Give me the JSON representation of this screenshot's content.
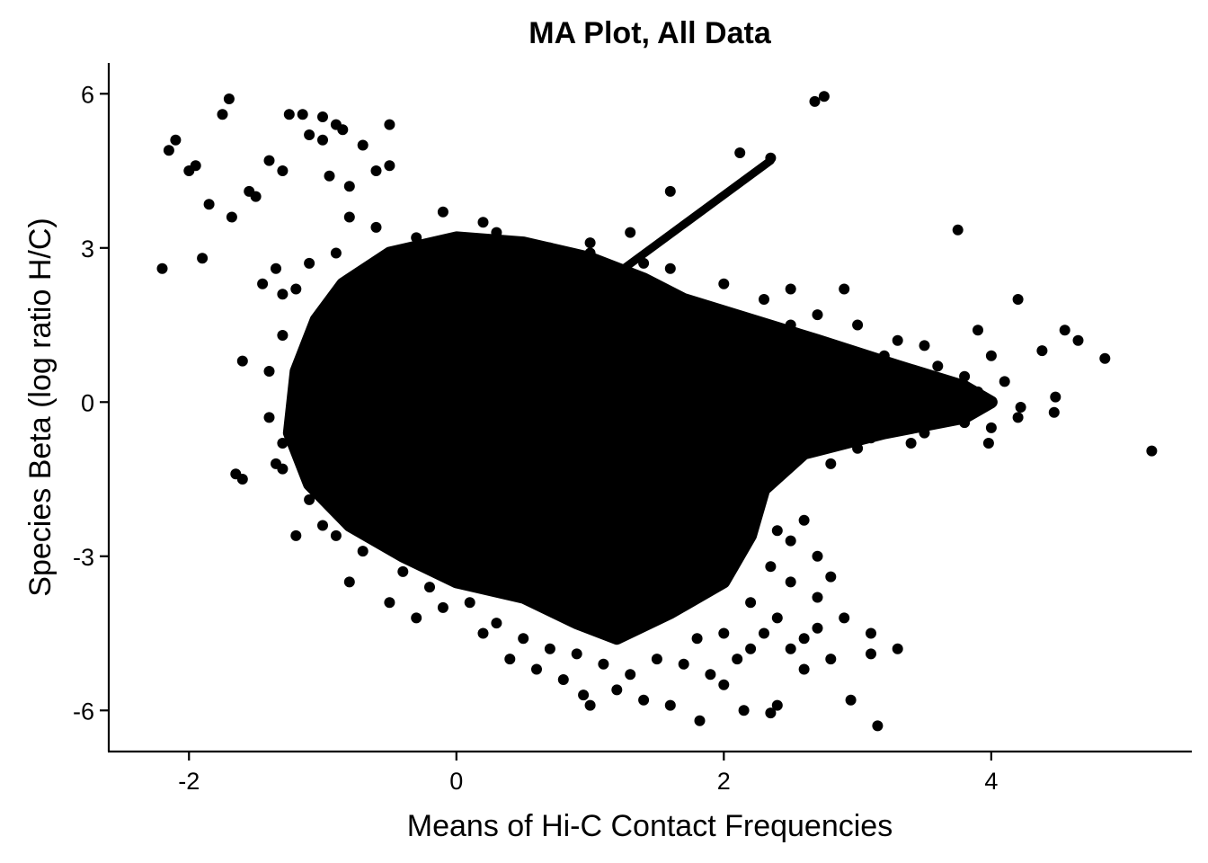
{
  "chart_data": {
    "type": "scatter",
    "title": "MA Plot, All Data",
    "xlabel": "Means of Hi-C Contact Frequencies",
    "ylabel": "Species Beta (log ratio H/C)",
    "xlim": [
      -2.6,
      5.5
    ],
    "ylim": [
      -6.8,
      6.6
    ],
    "x_ticks": [
      -2,
      0,
      2,
      4
    ],
    "x_tick_labels": [
      "-2",
      "0",
      "2",
      "4"
    ],
    "y_ticks": [
      -6,
      -3,
      0,
      3,
      6
    ],
    "y_tick_labels": [
      "-6",
      "-3",
      "0",
      "3",
      "6"
    ],
    "grid": false,
    "legend": "none",
    "point_color": "#000000",
    "dense_region_outline": [
      [
        -1.2,
        0.6
      ],
      [
        -1.05,
        1.6
      ],
      [
        -0.85,
        2.3
      ],
      [
        -0.5,
        2.9
      ],
      [
        0.0,
        3.2
      ],
      [
        0.5,
        3.1
      ],
      [
        1.0,
        2.8
      ],
      [
        1.4,
        2.4
      ],
      [
        1.7,
        2.0
      ],
      [
        2.2,
        1.6
      ],
      [
        2.7,
        1.2
      ],
      [
        3.3,
        0.7
      ],
      [
        3.8,
        0.3
      ],
      [
        4.0,
        0.0
      ],
      [
        3.8,
        -0.3
      ],
      [
        3.2,
        -0.6
      ],
      [
        2.6,
        -1.0
      ],
      [
        2.3,
        -1.7
      ],
      [
        2.2,
        -2.6
      ],
      [
        2.0,
        -3.5
      ],
      [
        1.6,
        -4.1
      ],
      [
        1.2,
        -4.6
      ],
      [
        0.9,
        -4.3
      ],
      [
        0.5,
        -3.8
      ],
      [
        0.0,
        -3.5
      ],
      [
        -0.4,
        -3.0
      ],
      [
        -0.8,
        -2.4
      ],
      [
        -1.1,
        -1.6
      ],
      [
        -1.25,
        -0.6
      ]
    ],
    "line_feature": {
      "x": [
        1.2,
        2.35
      ],
      "y": [
        2.5,
        4.7
      ]
    },
    "points": [
      [
        -2.2,
        2.6
      ],
      [
        -2.15,
        4.9
      ],
      [
        -2.1,
        5.1
      ],
      [
        -2.0,
        4.5
      ],
      [
        -1.95,
        4.6
      ],
      [
        -1.9,
        2.8
      ],
      [
        -1.85,
        3.85
      ],
      [
        -1.75,
        5.6
      ],
      [
        -1.7,
        5.9
      ],
      [
        -1.68,
        3.6
      ],
      [
        -1.6,
        0.8
      ],
      [
        -1.65,
        -1.4
      ],
      [
        -1.6,
        -1.5
      ],
      [
        -1.55,
        4.1
      ],
      [
        -1.5,
        4.0
      ],
      [
        -1.45,
        2.3
      ],
      [
        -1.4,
        4.7
      ],
      [
        -1.35,
        2.6
      ],
      [
        -1.3,
        4.5
      ],
      [
        -1.3,
        2.1
      ],
      [
        -1.4,
        -0.3
      ],
      [
        -1.35,
        -1.2
      ],
      [
        -1.3,
        -1.3
      ],
      [
        -1.25,
        5.6
      ],
      [
        -1.15,
        5.6
      ],
      [
        -1.1,
        5.2
      ],
      [
        -1.0,
        5.55
      ],
      [
        -1.0,
        5.1
      ],
      [
        -0.95,
        4.4
      ],
      [
        -0.9,
        5.4
      ],
      [
        -0.85,
        5.3
      ],
      [
        -0.8,
        4.2
      ],
      [
        -0.7,
        5.0
      ],
      [
        -0.6,
        4.5
      ],
      [
        -0.5,
        5.4
      ],
      [
        -0.5,
        4.6
      ],
      [
        -1.2,
        -2.6
      ],
      [
        -1.0,
        -2.4
      ],
      [
        -0.8,
        -3.5
      ],
      [
        -0.5,
        -3.9
      ],
      [
        -0.3,
        -4.2
      ],
      [
        -0.1,
        -4.0
      ],
      [
        0.2,
        -4.5
      ],
      [
        0.4,
        -5.0
      ],
      [
        0.6,
        -5.2
      ],
      [
        0.8,
        -5.4
      ],
      [
        0.95,
        -5.7
      ],
      [
        1.0,
        -5.9
      ],
      [
        1.2,
        -5.6
      ],
      [
        1.4,
        -5.8
      ],
      [
        1.6,
        -5.9
      ],
      [
        1.82,
        -6.2
      ],
      [
        2.0,
        -5.5
      ],
      [
        2.15,
        -6.0
      ],
      [
        2.35,
        -6.05
      ],
      [
        2.4,
        -5.9
      ],
      [
        2.6,
        -5.2
      ],
      [
        2.8,
        -5.0
      ],
      [
        2.95,
        -5.8
      ],
      [
        3.15,
        -6.3
      ],
      [
        3.1,
        -4.9
      ],
      [
        3.3,
        -4.8
      ],
      [
        3.1,
        -4.5
      ],
      [
        2.9,
        -4.2
      ],
      [
        2.7,
        -3.8
      ],
      [
        2.8,
        -3.4
      ],
      [
        2.7,
        -3.0
      ],
      [
        2.5,
        -2.7
      ],
      [
        2.6,
        -2.3
      ],
      [
        2.5,
        -3.5
      ],
      [
        2.4,
        -4.2
      ],
      [
        2.3,
        -4.5
      ],
      [
        2.2,
        -3.9
      ],
      [
        2.35,
        -3.2
      ],
      [
        2.4,
        -2.5
      ],
      [
        2.68,
        5.85
      ],
      [
        2.75,
        5.95
      ],
      [
        2.12,
        4.85
      ],
      [
        2.35,
        4.75
      ],
      [
        1.6,
        4.1
      ],
      [
        1.3,
        3.3
      ],
      [
        1.0,
        3.1
      ],
      [
        0.7,
        3.0
      ],
      [
        0.45,
        3.1
      ],
      [
        0.2,
        3.5
      ],
      [
        -0.1,
        3.7
      ],
      [
        1.6,
        2.6
      ],
      [
        2.0,
        2.3
      ],
      [
        2.3,
        2.0
      ],
      [
        2.5,
        2.2
      ],
      [
        2.7,
        1.7
      ],
      [
        2.9,
        2.2
      ],
      [
        3.0,
        1.5
      ],
      [
        3.3,
        1.2
      ],
      [
        3.5,
        1.1
      ],
      [
        3.75,
        3.35
      ],
      [
        3.9,
        1.4
      ],
      [
        4.0,
        0.9
      ],
      [
        4.2,
        2.0
      ],
      [
        4.38,
        1.0
      ],
      [
        4.55,
        1.4
      ],
      [
        4.65,
        1.2
      ],
      [
        4.85,
        0.85
      ],
      [
        5.2,
        -0.95
      ],
      [
        4.48,
        0.1
      ],
      [
        4.47,
        -0.2
      ],
      [
        4.22,
        -0.1
      ],
      [
        4.2,
        -0.3
      ],
      [
        4.1,
        0.4
      ],
      [
        4.0,
        -0.5
      ],
      [
        3.98,
        -0.8
      ],
      [
        3.8,
        0.5
      ],
      [
        3.9,
        0.2
      ],
      [
        3.7,
        -0.1
      ],
      [
        3.8,
        -0.4
      ],
      [
        3.5,
        -0.6
      ],
      [
        3.6,
        0.3
      ],
      [
        3.4,
        -0.8
      ],
      [
        3.3,
        -0.5
      ],
      [
        3.0,
        -0.9
      ],
      [
        2.8,
        -1.2
      ],
      [
        3.1,
        -0.7
      ],
      [
        2.5,
        1.5
      ],
      [
        3.2,
        0.9
      ],
      [
        3.6,
        0.7
      ],
      [
        1.0,
        2.9
      ],
      [
        0.6,
        2.95
      ],
      [
        0.3,
        3.3
      ],
      [
        1.4,
        2.7
      ],
      [
        -0.3,
        3.2
      ],
      [
        -0.6,
        3.4
      ],
      [
        -0.8,
        3.6
      ],
      [
        -0.9,
        2.9
      ],
      [
        -1.1,
        2.7
      ],
      [
        -1.2,
        2.2
      ],
      [
        -1.3,
        1.3
      ],
      [
        -1.4,
        0.6
      ],
      [
        -1.3,
        -0.8
      ],
      [
        -1.1,
        -1.9
      ],
      [
        -0.9,
        -2.6
      ],
      [
        -0.7,
        -2.9
      ],
      [
        -0.4,
        -3.3
      ],
      [
        -0.2,
        -3.6
      ],
      [
        0.1,
        -3.9
      ],
      [
        0.3,
        -4.3
      ],
      [
        0.5,
        -4.6
      ],
      [
        0.7,
        -4.8
      ],
      [
        0.9,
        -4.9
      ],
      [
        1.1,
        -5.1
      ],
      [
        1.3,
        -5.3
      ],
      [
        1.5,
        -5.0
      ],
      [
        1.7,
        -5.1
      ],
      [
        1.9,
        -5.3
      ],
      [
        2.1,
        -5.0
      ],
      [
        2.2,
        -4.8
      ],
      [
        2.0,
        -4.5
      ],
      [
        1.8,
        -4.6
      ],
      [
        2.6,
        -4.6
      ],
      [
        2.5,
        -4.8
      ],
      [
        2.7,
        -4.4
      ]
    ]
  }
}
